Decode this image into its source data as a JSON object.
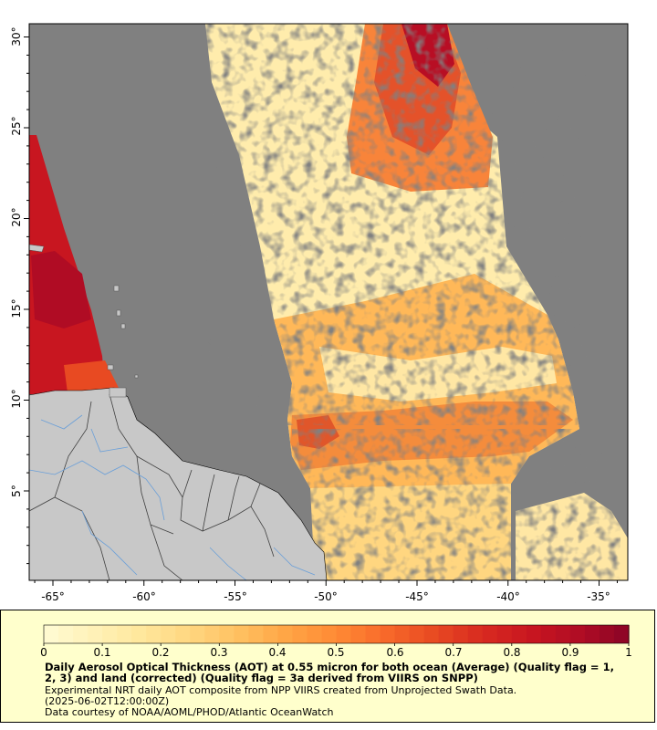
{
  "map": {
    "x_ticks": [
      "-65°",
      "-60°",
      "-55°",
      "-50°",
      "-45°",
      "-40°",
      "-35°"
    ],
    "y_ticks": [
      "5°",
      "10°",
      "15°",
      "20°",
      "25°",
      "30°"
    ],
    "colors": {
      "no_data": "#808080",
      "land": "#c8c8c8",
      "border": "#404040",
      "river": "#6a9fd8",
      "legend_background": "#ffffcc"
    }
  },
  "colorbar": {
    "tick_labels": [
      "0",
      "0.1",
      "0.2",
      "0.3",
      "0.4",
      "0.5",
      "0.6",
      "0.7",
      "0.8",
      "0.9",
      "1"
    ],
    "range": [
      0,
      1
    ],
    "colors": [
      "#fffcd4",
      "#fff1b8",
      "#ffe79c",
      "#ffd680",
      "#ffc060",
      "#ffa545",
      "#ff8a35",
      "#f86a2a",
      "#e84a22",
      "#d82a20",
      "#c81620",
      "#b00c24",
      "#8a0426"
    ]
  },
  "caption": {
    "title": "Daily Aerosol Optical Thickness (AOT) at 0.55 micron for both ocean (Average) (Quality flag = 1, 2, 3) and land (corrected) (Quality flag = 3a derived from VIIRS on SNPP)",
    "subtitle": "Experimental NRT daily AOT composite from NPP VIIRS created from Unprojected Swath Data.",
    "timestamp": "(2025-06-02T12:00:00Z)",
    "credit": "Data courtesy of NOAA/AOML/PHOD/Atlantic OceanWatch"
  }
}
